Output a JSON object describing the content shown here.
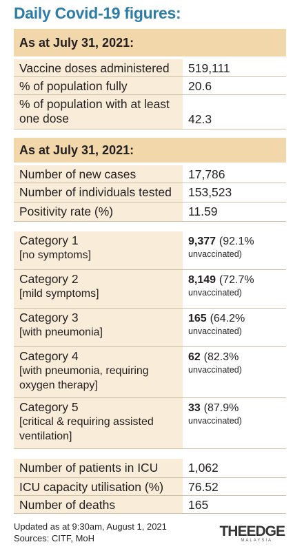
{
  "title": "Daily Covid-19 figures:",
  "vaccination": {
    "header": "As at July 31, 2021:",
    "rows": [
      {
        "label": "Vaccine doses administered",
        "value": "519,111"
      },
      {
        "label": "% of population fully vaccinated",
        "value": "20.6"
      },
      {
        "label": "% of population with at least one dose",
        "value": "42.3"
      }
    ]
  },
  "cases": {
    "header": "As at July 31, 2021:",
    "rows": [
      {
        "label": "Number of new cases",
        "value": "17,786"
      },
      {
        "label": "Number of individuals tested",
        "value": "153,523"
      },
      {
        "label": "Positivity rate (%)",
        "value": "11.59"
      }
    ]
  },
  "categories": {
    "rows": [
      {
        "label": "Category 1",
        "detail": "[no symptoms]",
        "count": "9,377",
        "share": "(92.1%",
        "note": "unvaccinated)"
      },
      {
        "label": "Category 2",
        "detail": "[mild symptoms]",
        "count": "8,149",
        "share": "(72.7%",
        "note": "unvaccinated)"
      },
      {
        "label": "Category 3",
        "detail": "[with pneumonia]",
        "count": "165",
        "share": "(64.2%",
        "note": "unvaccinated)"
      },
      {
        "label": "Category 4",
        "detail": "[with pneumonia, requiring oxygen therapy]",
        "count": "62",
        "share": "(82.3%",
        "note": "unvaccinated)"
      },
      {
        "label": "Category 5",
        "detail": "[critical & requiring assisted ventilation]",
        "count": "33",
        "share": "(87.9%",
        "note": "unvaccinated)"
      }
    ]
  },
  "outcomes": {
    "rows": [
      {
        "label": "Number of patients in ICU",
        "value": "1,062"
      },
      {
        "label": "ICU capacity utilisation (%)",
        "value": "76.52"
      },
      {
        "label": "Number of deaths",
        "value": "165"
      }
    ]
  },
  "footer": {
    "updated": "Updated as at 9:30am, August 1, 2021",
    "sources": "Sources: CITF, MoH"
  },
  "logo": {
    "brand": "THEEDGE",
    "region": "MALAYSIA"
  }
}
